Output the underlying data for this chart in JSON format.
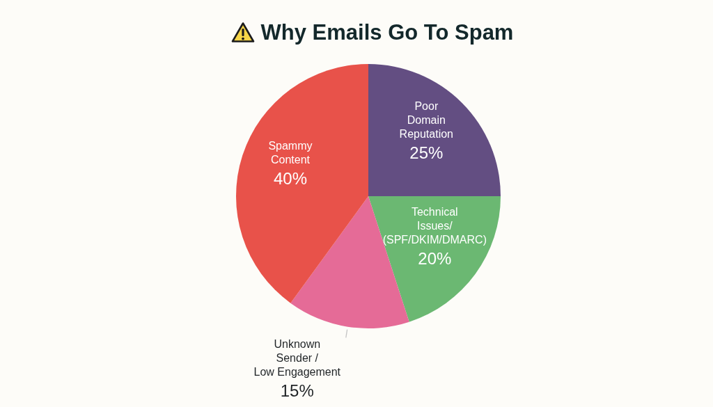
{
  "chart_data": {
    "type": "pie",
    "title": "Why Emails Go To Spam",
    "categories": [
      "Poor\nDomain\nReputation",
      "Technical\nIssues/\n(SPF/DKIM/DMARC)",
      "Unknown\nSender /\nLow Engagement",
      "Spammy\nContent"
    ],
    "values": [
      25,
      20,
      15,
      40
    ],
    "colors": [
      "#634e82",
      "#6bb872",
      "#e56b97",
      "#e8524a"
    ],
    "value_labels": [
      "25%",
      "20%",
      "15%",
      "40%"
    ]
  }
}
